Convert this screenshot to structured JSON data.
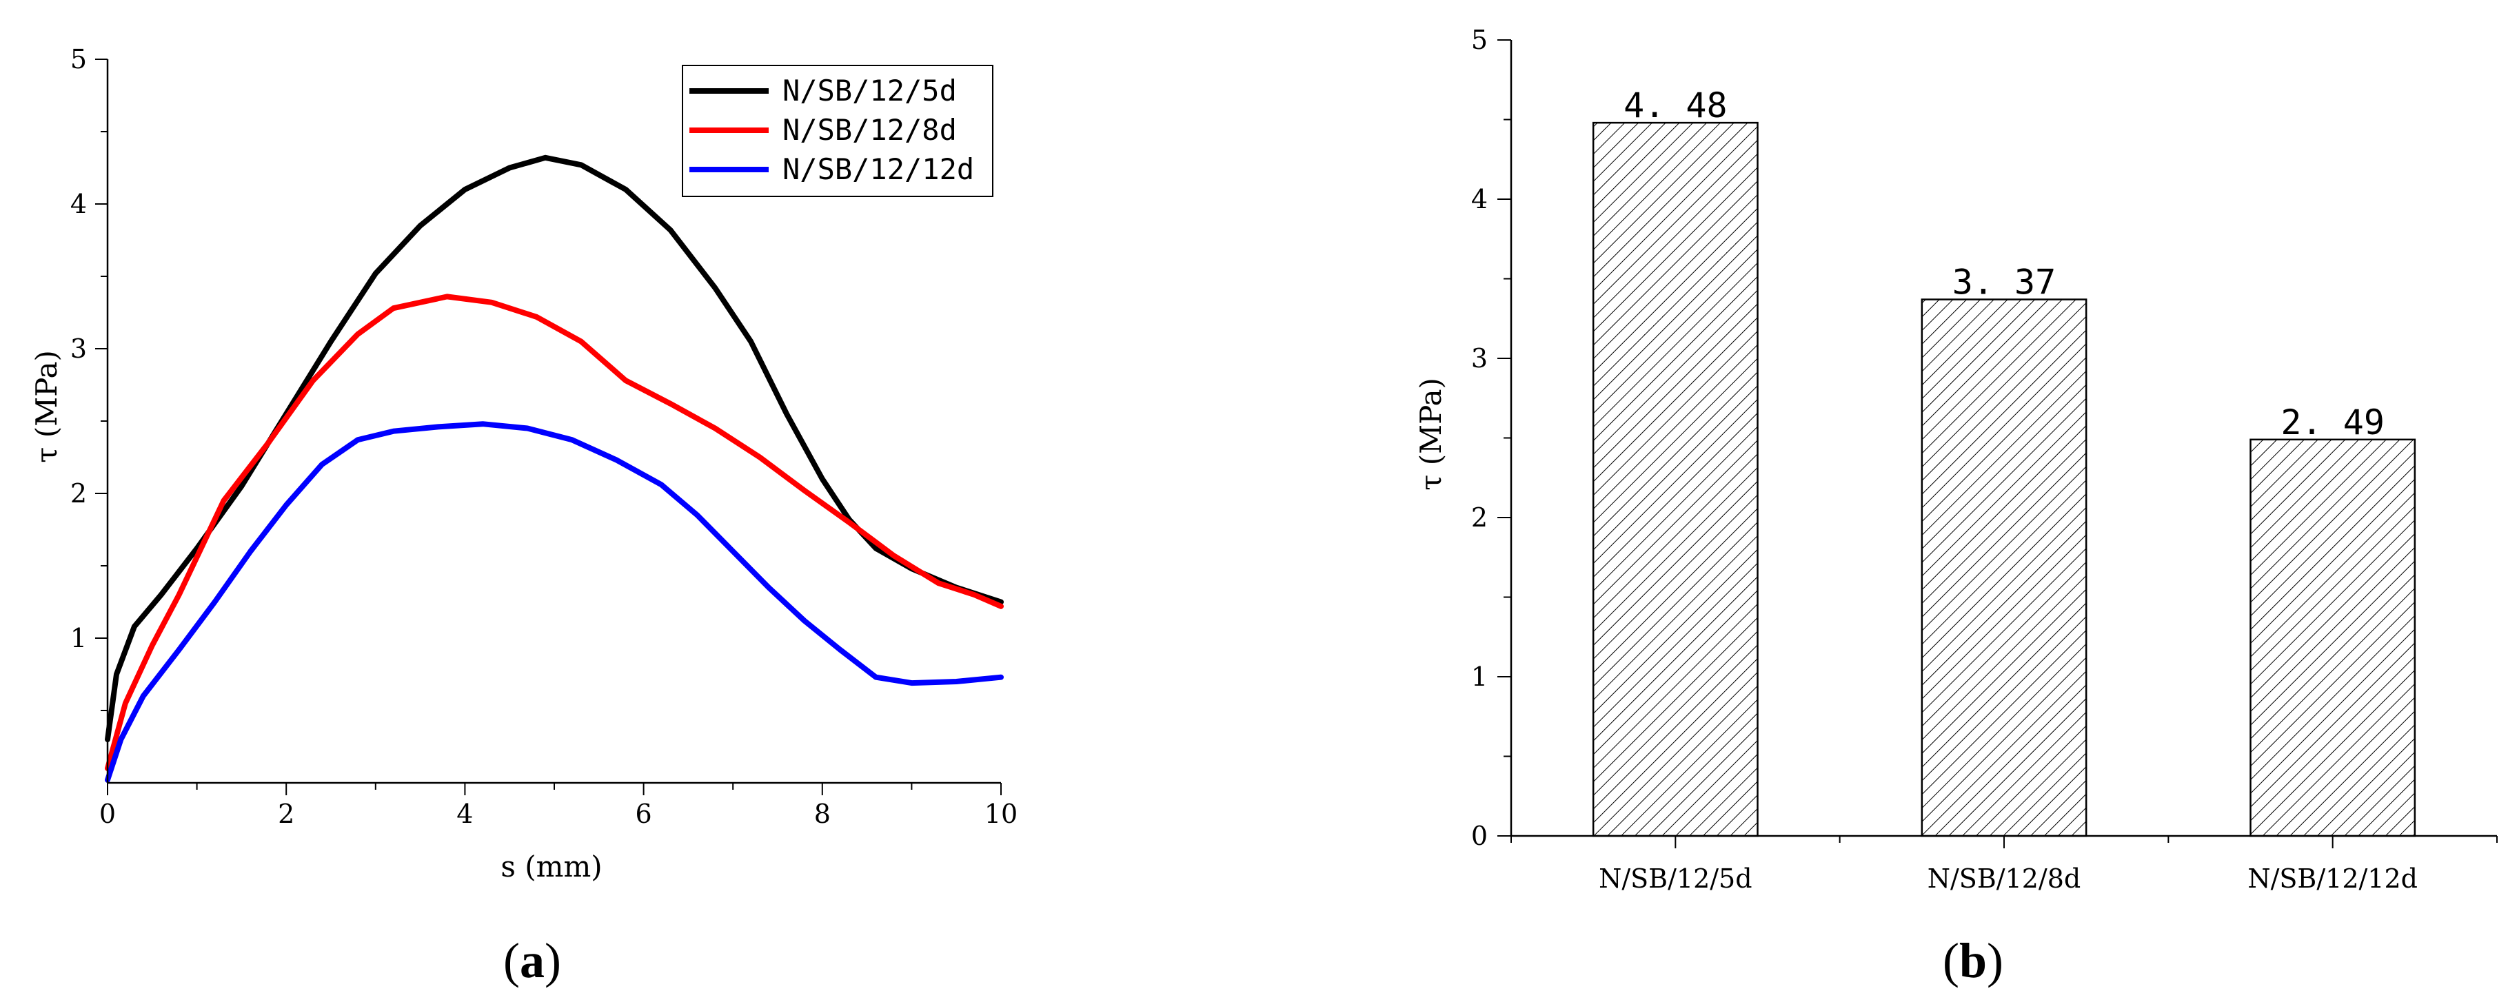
{
  "chart_data": [
    {
      "panel_label": "(a)",
      "panel_letter": "a",
      "type": "line",
      "xlabel": "s (mm)",
      "ylabel": "τ (MPa)",
      "xlim": [
        0,
        10
      ],
      "ylim": [
        0,
        5
      ],
      "xticks": [
        0,
        2,
        4,
        6,
        8,
        10
      ],
      "yticks": [
        1,
        2,
        3,
        4,
        5
      ],
      "grid": false,
      "legend_position": "top-right",
      "series": [
        {
          "name": "N/SB/12/5d",
          "color": "#000000",
          "points": [
            [
              0,
              0.3
            ],
            [
              0.1,
              0.75
            ],
            [
              0.3,
              1.08
            ],
            [
              0.6,
              1.3
            ],
            [
              1.0,
              1.62
            ],
            [
              1.5,
              2.05
            ],
            [
              2.0,
              2.55
            ],
            [
              2.5,
              3.05
            ],
            [
              3.0,
              3.52
            ],
            [
              3.5,
              3.85
            ],
            [
              4.0,
              4.1
            ],
            [
              4.5,
              4.25
            ],
            [
              4.9,
              4.32
            ],
            [
              5.3,
              4.27
            ],
            [
              5.8,
              4.1
            ],
            [
              6.3,
              3.82
            ],
            [
              6.8,
              3.42
            ],
            [
              7.2,
              3.05
            ],
            [
              7.6,
              2.55
            ],
            [
              8.0,
              2.1
            ],
            [
              8.3,
              1.82
            ],
            [
              8.6,
              1.62
            ],
            [
              9.0,
              1.48
            ],
            [
              9.5,
              1.35
            ],
            [
              10,
              1.25
            ]
          ]
        },
        {
          "name": "N/SB/12/8d",
          "color": "#ff0000",
          "points": [
            [
              0,
              0.1
            ],
            [
              0.2,
              0.55
            ],
            [
              0.5,
              0.95
            ],
            [
              0.8,
              1.3
            ],
            [
              1.3,
              1.95
            ],
            [
              1.8,
              2.35
            ],
            [
              2.3,
              2.78
            ],
            [
              2.8,
              3.1
            ],
            [
              3.2,
              3.28
            ],
            [
              3.8,
              3.36
            ],
            [
              4.3,
              3.32
            ],
            [
              4.8,
              3.22
            ],
            [
              5.3,
              3.05
            ],
            [
              5.8,
              2.78
            ],
            [
              6.3,
              2.62
            ],
            [
              6.8,
              2.45
            ],
            [
              7.3,
              2.25
            ],
            [
              7.8,
              2.02
            ],
            [
              8.3,
              1.8
            ],
            [
              8.8,
              1.57
            ],
            [
              9.3,
              1.38
            ],
            [
              9.7,
              1.3
            ],
            [
              10,
              1.22
            ]
          ]
        },
        {
          "name": "N/SB/12/12d",
          "color": "#0000ff",
          "points": [
            [
              0,
              0.02
            ],
            [
              0.15,
              0.3
            ],
            [
              0.4,
              0.6
            ],
            [
              0.8,
              0.92
            ],
            [
              1.2,
              1.25
            ],
            [
              1.6,
              1.6
            ],
            [
              2.0,
              1.92
            ],
            [
              2.4,
              2.2
            ],
            [
              2.8,
              2.37
            ],
            [
              3.2,
              2.43
            ],
            [
              3.7,
              2.46
            ],
            [
              4.2,
              2.48
            ],
            [
              4.7,
              2.45
            ],
            [
              5.2,
              2.37
            ],
            [
              5.7,
              2.23
            ],
            [
              6.2,
              2.06
            ],
            [
              6.6,
              1.85
            ],
            [
              7.0,
              1.6
            ],
            [
              7.4,
              1.35
            ],
            [
              7.8,
              1.12
            ],
            [
              8.2,
              0.92
            ],
            [
              8.6,
              0.73
            ],
            [
              9.0,
              0.69
            ],
            [
              9.5,
              0.7
            ],
            [
              10,
              0.73
            ]
          ]
        }
      ]
    },
    {
      "panel_label": "(b)",
      "panel_letter": "b",
      "type": "bar",
      "categories": [
        "N/SB/12/5d",
        "N/SB/12/8d",
        "N/SB/12/12d"
      ],
      "values": [
        4.48,
        3.37,
        2.49
      ],
      "value_labels": [
        "4. 48",
        "3. 37",
        "2. 49"
      ],
      "xlabel": "",
      "ylabel": "τ (MPa)",
      "ylim": [
        0,
        5
      ],
      "yticks": [
        0,
        1,
        2,
        3,
        4,
        5
      ],
      "fill": "diagonal-hatch",
      "grid": false
    }
  ]
}
